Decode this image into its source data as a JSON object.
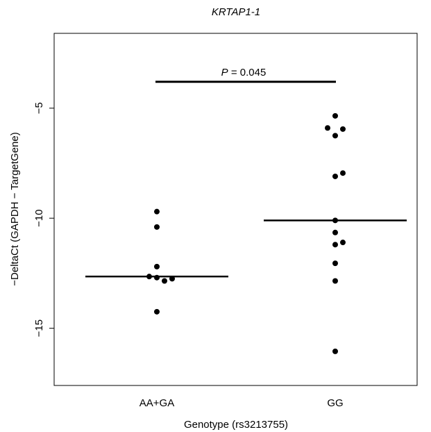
{
  "chart_data": {
    "type": "scatter",
    "title": "KRTAP1-1",
    "xlabel": "Genotype (rs3213755)",
    "ylabel": "−DeltaCt (GAPDH − TargetGene)",
    "categories": [
      "AA+GA",
      "GG"
    ],
    "ylim": [
      -17.6,
      -1.6
    ],
    "yticks": [
      -5,
      -10,
      -15
    ],
    "ytick_labels": [
      "−5",
      "−10",
      "−15"
    ],
    "grid": false,
    "annotation": {
      "p_label": "P",
      "p_value": " = 0.045",
      "bracket_y": -3.8
    },
    "series": [
      {
        "category": "AA+GA",
        "median": -12.65,
        "points": [
          {
            "dx": 0,
            "y": -9.7
          },
          {
            "dx": 0,
            "y": -10.4
          },
          {
            "dx": 0,
            "y": -12.2
          },
          {
            "dx": -1,
            "y": -12.65
          },
          {
            "dx": 0,
            "y": -12.7
          },
          {
            "dx": 1,
            "y": -12.85
          },
          {
            "dx": 2,
            "y": -12.75
          },
          {
            "dx": 0,
            "y": -14.25
          }
        ]
      },
      {
        "category": "GG",
        "median": -10.1,
        "points": [
          {
            "dx": 0,
            "y": -5.35
          },
          {
            "dx": -1,
            "y": -5.9
          },
          {
            "dx": 1,
            "y": -5.95
          },
          {
            "dx": 0,
            "y": -6.25
          },
          {
            "dx": 1,
            "y": -7.95
          },
          {
            "dx": 0,
            "y": -8.1
          },
          {
            "dx": 0,
            "y": -10.1
          },
          {
            "dx": 0,
            "y": -10.65
          },
          {
            "dx": 1,
            "y": -11.1
          },
          {
            "dx": 0,
            "y": -11.2
          },
          {
            "dx": 0,
            "y": -12.05
          },
          {
            "dx": 0,
            "y": -12.85
          },
          {
            "dx": 0,
            "y": -16.05
          }
        ]
      }
    ]
  }
}
